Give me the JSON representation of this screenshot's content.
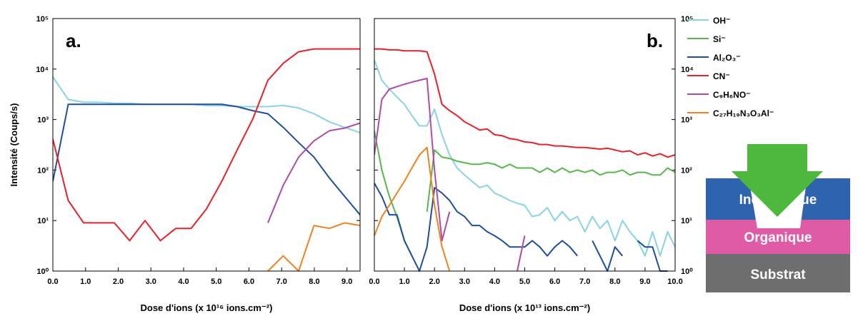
{
  "chart_data": [
    {
      "type": "line",
      "label": "a.",
      "ylabel": "Intensité (Coups/s)",
      "xlabel": "Dose d'ions (x 10¹⁶ ions.cm⁻²)",
      "log_y": true,
      "yaxis_position": "left",
      "xlim": [
        0,
        9.4
      ],
      "ylim": [
        1,
        100000
      ],
      "xticks": [
        {
          "value": 0,
          "label": "0.0"
        },
        {
          "value": 1,
          "label": "1.0"
        },
        {
          "value": 2,
          "label": "2.0"
        },
        {
          "value": 3,
          "label": "3.0"
        },
        {
          "value": 4,
          "label": "4.0"
        },
        {
          "value": 5,
          "label": "5.0"
        },
        {
          "value": 6,
          "label": "6.0"
        },
        {
          "value": 7,
          "label": "7.0"
        },
        {
          "value": 8,
          "label": "8.0"
        },
        {
          "value": 9,
          "label": "9.0"
        }
      ],
      "yticks": [
        {
          "value": 1,
          "label": "10⁰"
        },
        {
          "value": 10,
          "label": "10¹"
        },
        {
          "value": 100,
          "label": "10²"
        },
        {
          "value": 1000,
          "label": "10³"
        },
        {
          "value": 10000,
          "label": "10⁴"
        },
        {
          "value": 100000,
          "label": "10⁵"
        }
      ],
      "x": [
        0,
        0.47,
        0.94,
        1.41,
        1.88,
        2.35,
        2.82,
        3.29,
        3.76,
        4.23,
        4.7,
        5.17,
        5.64,
        6.11,
        6.58,
        7.05,
        7.52,
        7.99,
        8.46,
        8.93,
        9.4
      ],
      "series": [
        {
          "color": "#88d4e2",
          "values": [
            7000,
            2500,
            2200,
            2200,
            2100,
            2100,
            2000,
            2000,
            2000,
            2000,
            1900,
            1900,
            1800,
            1800,
            1800,
            1900,
            1700,
            1300,
            900,
            700,
            550
          ]
        },
        {
          "color": "#1f4e9e",
          "values": [
            60,
            2000,
            2000,
            2000,
            2000,
            2000,
            2000,
            2000,
            2000,
            2000,
            2000,
            2000,
            1800,
            1500,
            1300,
            700,
            350,
            180,
            70,
            30,
            13
          ]
        },
        {
          "color": "#e8202a",
          "values": [
            410,
            25,
            9,
            9,
            9,
            4,
            10,
            4,
            7,
            7,
            17,
            60,
            250,
            1000,
            6000,
            13000,
            22000,
            25000,
            25000,
            25000,
            25000
          ]
        },
        {
          "color": "#b04aa8",
          "values": [
            null,
            null,
            null,
            null,
            null,
            null,
            null,
            null,
            null,
            null,
            null,
            null,
            null,
            null,
            9,
            50,
            180,
            380,
            600,
            680,
            850
          ]
        },
        {
          "color": "#f0821e",
          "values": [
            null,
            null,
            null,
            null,
            null,
            null,
            null,
            null,
            null,
            null,
            null,
            null,
            null,
            null,
            1,
            2,
            1,
            8,
            7,
            9,
            8
          ]
        }
      ]
    },
    {
      "type": "line",
      "label": "b.",
      "xlabel": "Dose d'ions (x 10¹³ ions.cm⁻²)",
      "log_y": true,
      "yaxis_position": "right",
      "legend": "outside-right",
      "xlim": [
        0,
        10
      ],
      "ylim": [
        1,
        100000
      ],
      "xticks": [
        {
          "value": 0,
          "label": "0.0"
        },
        {
          "value": 1,
          "label": "1.0"
        },
        {
          "value": 2,
          "label": "2.0"
        },
        {
          "value": 3,
          "label": "3.0"
        },
        {
          "value": 4,
          "label": "4.0"
        },
        {
          "value": 5,
          "label": "5.0"
        },
        {
          "value": 6,
          "label": "6.0"
        },
        {
          "value": 7,
          "label": "7.0"
        },
        {
          "value": 8,
          "label": "8.0"
        },
        {
          "value": 9,
          "label": "9.0"
        },
        {
          "value": 10,
          "label": "10.0"
        }
      ],
      "yticks": [
        {
          "value": 1,
          "label": "10⁰"
        },
        {
          "value": 10,
          "label": "10¹"
        },
        {
          "value": 100,
          "label": "10²"
        },
        {
          "value": 1000,
          "label": "10³"
        },
        {
          "value": 10000,
          "label": "10⁴"
        },
        {
          "value": 100000,
          "label": "10⁵"
        }
      ],
      "x": [
        0,
        0.25,
        0.5,
        0.75,
        1,
        1.25,
        1.5,
        1.75,
        2,
        2.25,
        2.5,
        2.75,
        3,
        3.25,
        3.5,
        3.75,
        4,
        4.25,
        4.5,
        4.75,
        5,
        5.25,
        5.5,
        5.75,
        6,
        6.25,
        6.5,
        6.75,
        7,
        7.25,
        7.5,
        7.75,
        8,
        8.25,
        8.5,
        8.75,
        9,
        9.25,
        9.5,
        9.75,
        10
      ],
      "series": [
        {
          "name": "OH⁻",
          "color": "#88d4e2",
          "values": [
            15000,
            6000,
            4000,
            2800,
            2000,
            1200,
            750,
            750,
            1600,
            500,
            200,
            110,
            80,
            60,
            45,
            50,
            35,
            30,
            25,
            22,
            20,
            12,
            13,
            18,
            10,
            15,
            10,
            12,
            6,
            12,
            7,
            10,
            4,
            10,
            6,
            4,
            2,
            6,
            2,
            6,
            3
          ]
        },
        {
          "name": "Si⁻",
          "color": "#55b84a",
          "values": [
            600,
            100,
            30,
            12,
            4,
            2,
            null,
            15,
            250,
            180,
            170,
            150,
            140,
            130,
            130,
            140,
            130,
            110,
            130,
            110,
            110,
            110,
            90,
            110,
            90,
            110,
            90,
            100,
            90,
            100,
            80,
            90,
            90,
            100,
            80,
            90,
            90,
            80,
            80,
            110,
            90
          ]
        },
        {
          "name": "Al₂O₃⁻",
          "color": "#1f4e9e",
          "values": [
            55,
            30,
            13,
            13,
            4,
            2,
            1,
            3,
            45,
            35,
            25,
            15,
            12,
            8,
            8,
            6,
            5,
            4,
            3,
            3,
            3,
            4,
            3,
            2,
            3,
            4,
            3,
            2,
            null,
            4,
            2,
            1,
            3,
            2,
            null,
            4,
            3,
            3,
            1,
            1,
            null
          ]
        },
        {
          "name": "CN⁻",
          "color": "#e8202a",
          "values": [
            25000,
            25000,
            24000,
            24000,
            23000,
            23000,
            23000,
            22000,
            8000,
            2000,
            1500,
            1200,
            900,
            750,
            620,
            650,
            500,
            480,
            420,
            400,
            360,
            350,
            320,
            320,
            300,
            300,
            290,
            280,
            280,
            270,
            260,
            270,
            250,
            230,
            240,
            200,
            220,
            190,
            210,
            180,
            200
          ]
        },
        {
          "name": "C₉H₆NO⁻",
          "color": "#b04aa8",
          "values": [
            200,
            2500,
            4000,
            4500,
            5000,
            5500,
            6000,
            6500,
            100,
            4,
            15,
            null,
            null,
            null,
            null,
            null,
            null,
            null,
            null,
            1,
            5,
            null,
            null,
            null,
            null,
            null,
            null,
            null,
            null,
            null,
            null,
            null,
            null,
            null,
            null,
            null,
            null,
            null,
            null,
            null,
            null
          ]
        },
        {
          "name": "C₂₇H₁₉N₃O₃Al⁻",
          "color": "#f0821e",
          "values": [
            5,
            12,
            20,
            35,
            60,
            110,
            200,
            280,
            20,
            3,
            1,
            null,
            null,
            null,
            null,
            null,
            null,
            null,
            null,
            null,
            null,
            null,
            null,
            null,
            null,
            null,
            null,
            null,
            null,
            null,
            null,
            null,
            null,
            null,
            null,
            null,
            null,
            null,
            null,
            null,
            null
          ]
        }
      ]
    }
  ],
  "diagram": {
    "layers": [
      "Inorganique",
      "Organique",
      "Substrat"
    ]
  }
}
